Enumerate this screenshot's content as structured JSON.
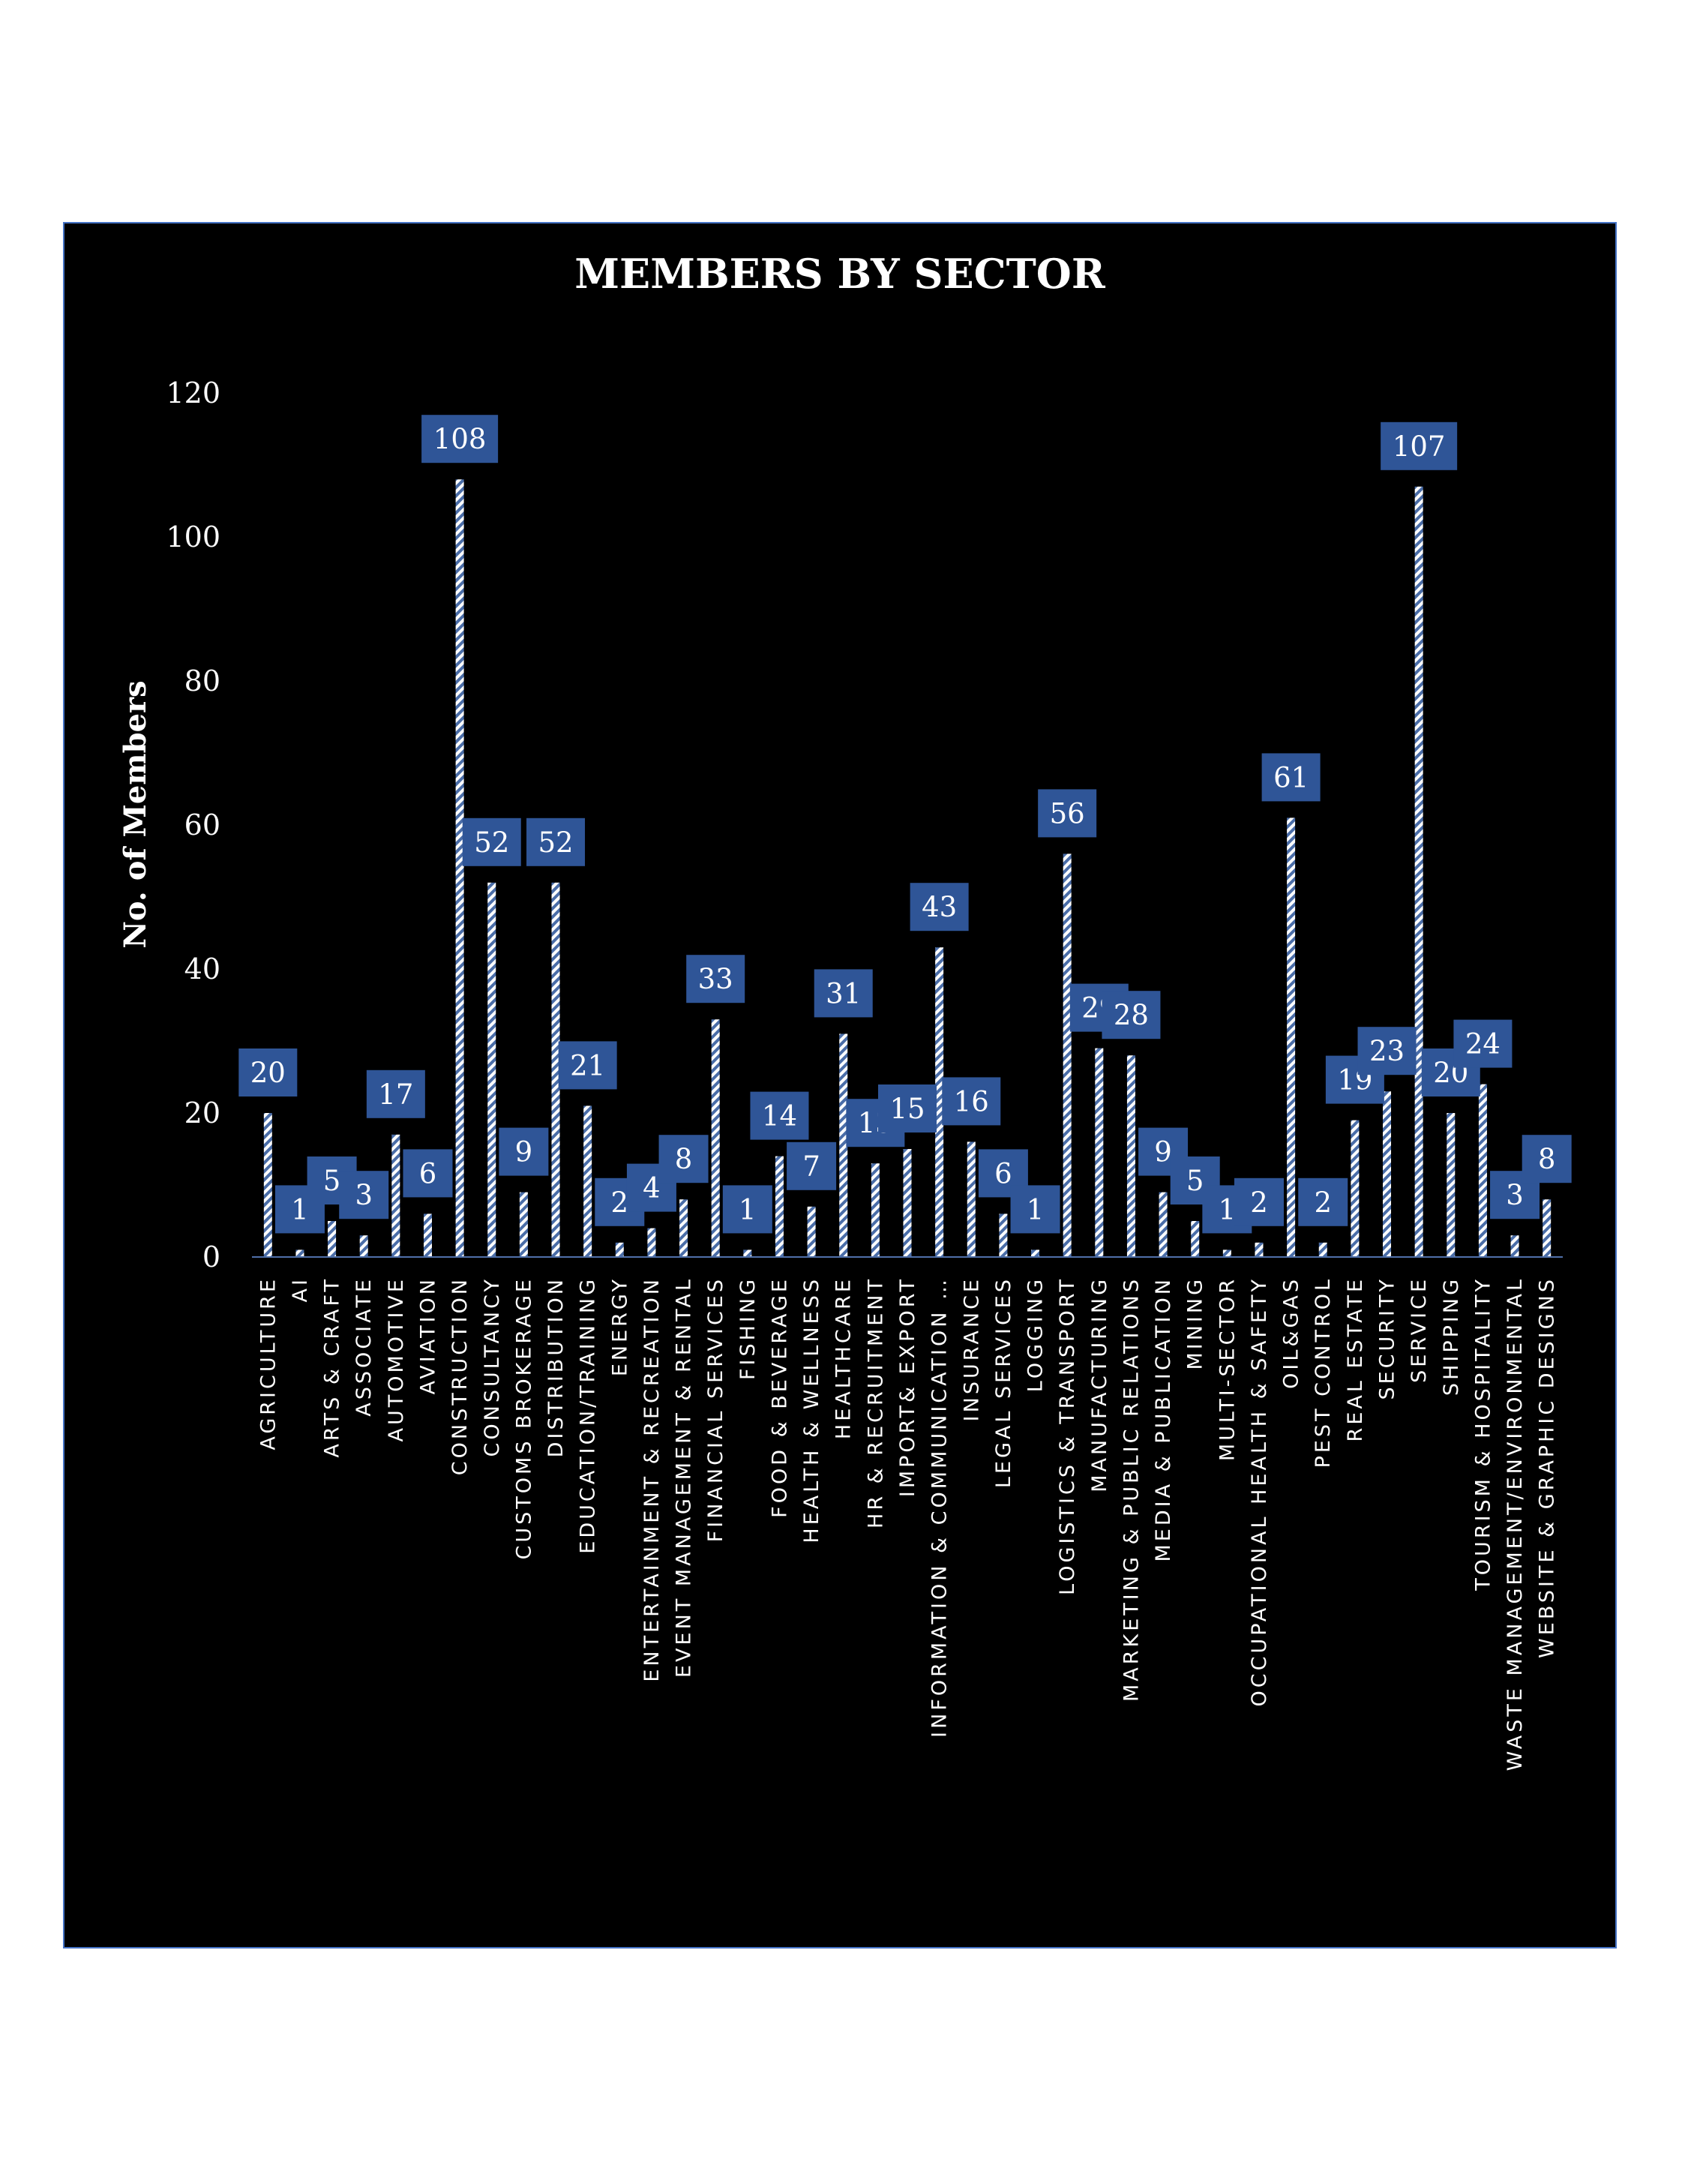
{
  "colors": {
    "plot_background": "#000000",
    "frame_border": "#4472c4",
    "bar_fill_light": "#ffffff",
    "bar_fill_dark": "#4a6da8",
    "label_box": "#2f5597",
    "axis_line": "#4f6fa8",
    "text": "#ffffff"
  },
  "chart_data": {
    "type": "bar",
    "title": "MEMBERS BY SECTOR",
    "ylabel": "No. of Members",
    "xlabel": "",
    "ylim": [
      0,
      120
    ],
    "yticks": [
      0,
      20,
      40,
      60,
      80,
      100,
      120
    ],
    "grid": false,
    "legend": "none",
    "bar_pattern": "diagonal-hatch",
    "categories": [
      "AGRICULTURE",
      "AI",
      "ARTS & CRAFT",
      "ASSOCIATE",
      "AUTOMOTIVE",
      "AVIATION",
      "CONSTRUCTION",
      "CONSULTANCY",
      "CUSTOMS BROKERAGE",
      "DISTRIBUTION",
      "EDUCATION/TRAINING",
      "ENERGY",
      "ENTERTAINMENT & RECREATION",
      "EVENT MANAGEMENT & RENTAL",
      "FINANCIAL SERVICES",
      "FISHING",
      "FOOD & BEVERAGE",
      "HEALTH & WELLNESS",
      "HEALTHCARE",
      "HR & RECRUITMENT",
      "IMPORT& EXPORT",
      "INFORMATION & COMMUNICATION …",
      "INSURANCE",
      "LEGAL SERVICES",
      "LOGGING",
      "LOGISTICS & TRANSPORT",
      "MANUFACTURING",
      "MARKETING & PUBLIC RELATIONS",
      "MEDIA & PUBLICATION",
      "MINING",
      "MULTI-SECTOR",
      "OCCUPATIONAL HEALTH & SAFETY",
      "OIL&GAS",
      "PEST CONTROL",
      "REAL ESTATE",
      "SECURITY",
      "SERVICE",
      "SHIPPING",
      "TOURISM & HOSPITALITY",
      "WASTE MANAGEMENT/ENVIRONMENTAL",
      "WEBSITE & GRAPHIC DESIGNS"
    ],
    "values": [
      20,
      1,
      5,
      3,
      17,
      6,
      108,
      52,
      9,
      52,
      21,
      2,
      4,
      8,
      33,
      1,
      14,
      7,
      31,
      13,
      15,
      43,
      16,
      6,
      1,
      56,
      29,
      28,
      9,
      5,
      1,
      2,
      61,
      2,
      19,
      23,
      107,
      20,
      24,
      3,
      8
    ]
  }
}
